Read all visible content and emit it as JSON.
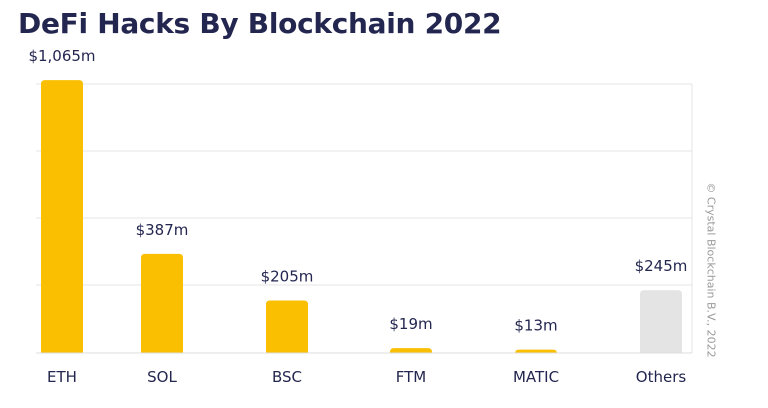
{
  "title": "DeFi Hacks By Blockchain 2022",
  "credit": "© Crystal Blockchain B.V., 2022",
  "colors": {
    "title": "#23264f",
    "bar_highlight": "#f9bf00",
    "bar_other": "#e4e4e4",
    "grid": "#e4e4e4",
    "label": "#23264f"
  },
  "chart_data": {
    "type": "bar",
    "title": "DeFi Hacks By Blockchain 2022",
    "xlabel": "",
    "ylabel": "",
    "unit": "$m",
    "categories": [
      "ETH",
      "SOL",
      "BSC",
      "FTM",
      "MATIC",
      "Others"
    ],
    "values": [
      1065,
      387,
      205,
      19,
      13,
      245
    ],
    "value_labels": [
      "$1,065m",
      "$387m",
      "$205m",
      "$19m",
      "$13m",
      "$245m"
    ],
    "bar_colors": [
      "#f9bf00",
      "#f9bf00",
      "#f9bf00",
      "#f9bf00",
      "#f9bf00",
      "#e4e4e4"
    ],
    "grid": true,
    "legend": "none"
  }
}
